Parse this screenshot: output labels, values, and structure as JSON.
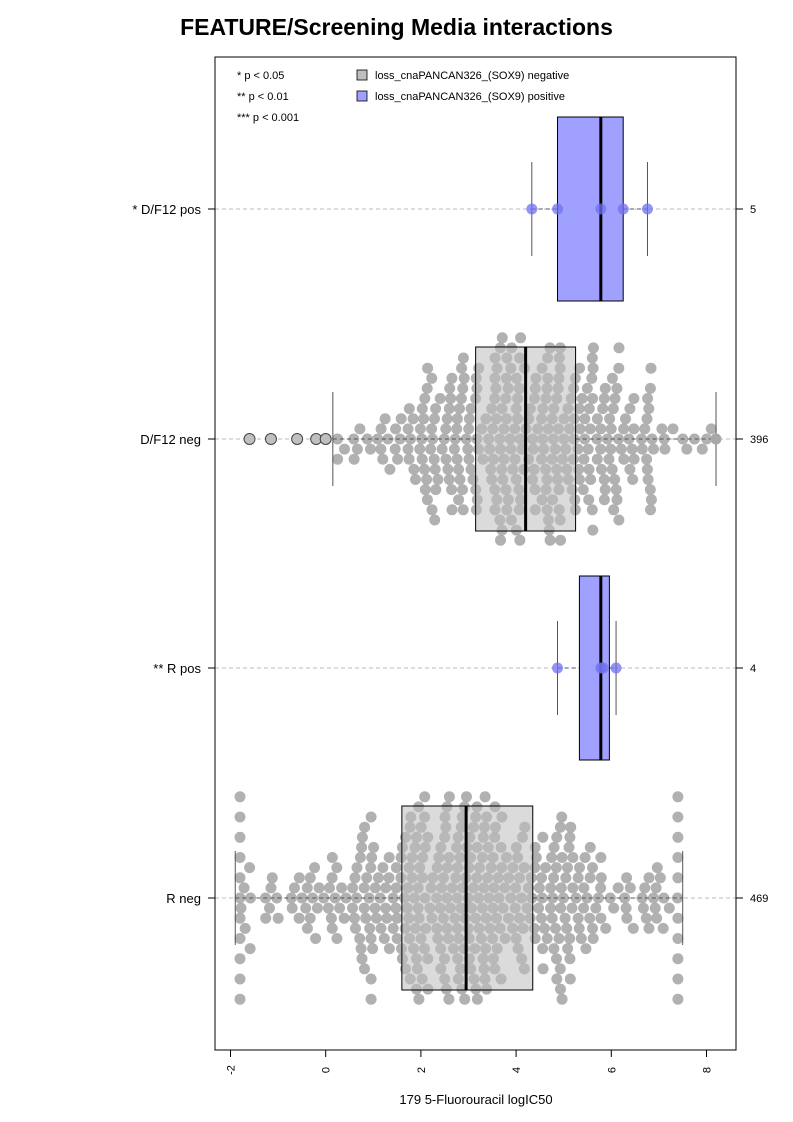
{
  "chart_data": {
    "type": "box",
    "orientation": "horizontal",
    "title": "FEATURE/Screening Media interactions",
    "xlabel": "179 5-Fluorouracil logIC50",
    "ylabel": "",
    "xlim": [
      -2.3,
      8.6
    ],
    "x_ticks": [
      -2,
      0,
      2,
      4,
      6,
      8
    ],
    "x_tick_labels": [
      "-2",
      "0",
      "2",
      "4",
      "6",
      "8"
    ],
    "grid": false,
    "legend_position": "top",
    "significance_legend": [
      "* p < 0.05",
      "** p < 0.01",
      "*** p < 0.001"
    ],
    "legend": [
      {
        "label": "loss_cnaPANCAN326_(SOX9) negative",
        "color": "#bebebe"
      },
      {
        "label": "loss_cnaPANCAN326_(SOX9) positive",
        "color": "#a0a0ff"
      }
    ],
    "series": [
      {
        "label": "* D/F12 pos",
        "n_label": "5",
        "group": "positive",
        "whisker_low": 4.33,
        "q1": 4.87,
        "median": 5.78,
        "q3": 6.25,
        "whisker_high": 6.76,
        "points": [
          4.33,
          4.87,
          5.78,
          6.25,
          6.76
        ],
        "outliers": []
      },
      {
        "label": "D/F12 neg",
        "n_label": "396",
        "group": "negative",
        "whisker_low": 0.15,
        "q1": 3.15,
        "median": 4.2,
        "q3": 5.25,
        "whisker_high": 8.2,
        "points": [],
        "outliers": [
          -1.6,
          -1.15,
          -0.6,
          -0.2,
          0.0,
          8.2
        ]
      },
      {
        "label": "** R pos",
        "n_label": "4",
        "group": "positive",
        "whisker_low": 4.87,
        "q1": 5.33,
        "median": 5.78,
        "q3": 5.96,
        "whisker_high": 6.1,
        "points": [
          4.87,
          5.78,
          5.83,
          6.1
        ],
        "outliers": []
      },
      {
        "label": "R neg",
        "n_label": "469",
        "group": "negative",
        "whisker_low": -1.9,
        "q1": 1.6,
        "median": 2.95,
        "q3": 4.35,
        "whisker_high": 7.5,
        "points": [],
        "outliers": []
      }
    ]
  },
  "colors": {
    "negative_fill": "#bebebe",
    "negative_point": "#a8a8a8",
    "positive_fill": "#a0a0ff",
    "positive_point": "#7070f0"
  }
}
